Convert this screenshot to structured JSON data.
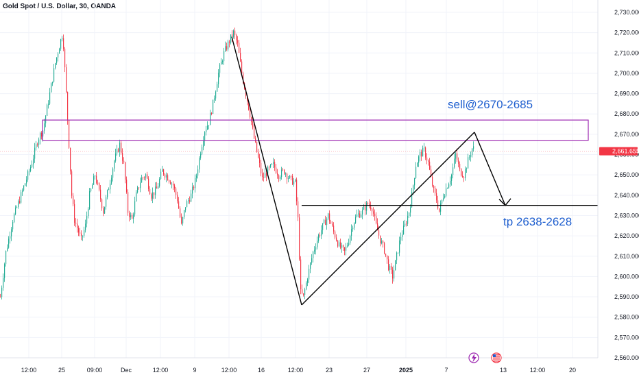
{
  "header": {
    "title": "Gold Spot / U.S. Dollar, 30, OANDA"
  },
  "colors": {
    "up": "#22ab94",
    "down": "#f23645",
    "zone": "#9c27b0",
    "annotation": "#1f5fcf",
    "price_tag": "#f23645",
    "drawing": "#000000"
  },
  "icons": [
    "lightning-icon",
    "us-flag-icon"
  ],
  "chart_data": {
    "type": "candlestick",
    "symbol": "Gold Spot / U.S. Dollar",
    "interval": "30",
    "source": "OANDA",
    "ylim": [
      2555,
      2735
    ],
    "y_ticks": [
      "2,730.000",
      "2,720.000",
      "2,710.000",
      "2,700.000",
      "2,690.000",
      "2,680.000",
      "2,670.000",
      "2,660.000",
      "2,650.000",
      "2,640.000",
      "2,630.000",
      "2,620.000",
      "2,610.000",
      "2,600.000",
      "2,590.000",
      "2,580.000",
      "2,570.000",
      "2,560.000"
    ],
    "y_tick_values": [
      2730,
      2720,
      2710,
      2700,
      2690,
      2680,
      2670,
      2660,
      2650,
      2640,
      2630,
      2620,
      2610,
      2600,
      2590,
      2580,
      2570,
      2560
    ],
    "x_ticks": [
      "12:00",
      "25",
      "09:00",
      "Dec",
      "12:00",
      "9",
      "12:00",
      "16",
      "12:00",
      "23",
      "27",
      "2025",
      "7",
      "13",
      "12:00",
      "20"
    ],
    "x_tick_index": [
      42,
      90,
      138,
      184,
      234,
      284,
      334,
      381,
      431,
      480,
      535,
      592,
      651,
      734,
      784,
      835
    ],
    "current_price": "2,661.655",
    "current_price_value": 2661.655,
    "price_path": [
      [
        0,
        2590
      ],
      [
        8,
        2612
      ],
      [
        18,
        2628
      ],
      [
        30,
        2640
      ],
      [
        45,
        2655
      ],
      [
        55,
        2668
      ],
      [
        62,
        2672
      ],
      [
        72,
        2690
      ],
      [
        80,
        2705
      ],
      [
        87,
        2715
      ],
      [
        91,
        2720
      ],
      [
        96,
        2690
      ],
      [
        100,
        2665
      ],
      [
        104,
        2640
      ],
      [
        108,
        2628
      ],
      [
        112,
        2624
      ],
      [
        118,
        2618
      ],
      [
        124,
        2625
      ],
      [
        130,
        2640
      ],
      [
        138,
        2650
      ],
      [
        145,
        2640
      ],
      [
        150,
        2632
      ],
      [
        158,
        2644
      ],
      [
        166,
        2657
      ],
      [
        174,
        2665
      ],
      [
        180,
        2655
      ],
      [
        186,
        2632
      ],
      [
        192,
        2628
      ],
      [
        198,
        2640
      ],
      [
        205,
        2648
      ],
      [
        212,
        2650
      ],
      [
        220,
        2640
      ],
      [
        228,
        2643
      ],
      [
        236,
        2652
      ],
      [
        244,
        2649
      ],
      [
        252,
        2645
      ],
      [
        258,
        2638
      ],
      [
        264,
        2625
      ],
      [
        270,
        2635
      ],
      [
        278,
        2640
      ],
      [
        285,
        2648
      ],
      [
        292,
        2662
      ],
      [
        298,
        2672
      ],
      [
        304,
        2676
      ],
      [
        310,
        2685
      ],
      [
        318,
        2700
      ],
      [
        326,
        2710
      ],
      [
        334,
        2716
      ],
      [
        340,
        2720
      ],
      [
        346,
        2714
      ],
      [
        352,
        2700
      ],
      [
        358,
        2690
      ],
      [
        364,
        2680
      ],
      [
        370,
        2668
      ],
      [
        376,
        2658
      ],
      [
        382,
        2648
      ],
      [
        390,
        2652
      ],
      [
        398,
        2655
      ],
      [
        406,
        2650
      ],
      [
        414,
        2652
      ],
      [
        422,
        2648
      ],
      [
        430,
        2646
      ],
      [
        434,
        2628
      ],
      [
        438,
        2592
      ],
      [
        442,
        2590
      ],
      [
        448,
        2600
      ],
      [
        456,
        2612
      ],
      [
        464,
        2620
      ],
      [
        472,
        2626
      ],
      [
        478,
        2630
      ],
      [
        486,
        2622
      ],
      [
        494,
        2615
      ],
      [
        502,
        2612
      ],
      [
        508,
        2618
      ],
      [
        514,
        2626
      ],
      [
        520,
        2630
      ],
      [
        528,
        2632
      ],
      [
        536,
        2636
      ],
      [
        542,
        2634
      ],
      [
        548,
        2625
      ],
      [
        554,
        2618
      ],
      [
        560,
        2613
      ],
      [
        566,
        2605
      ],
      [
        572,
        2600
      ],
      [
        578,
        2610
      ],
      [
        584,
        2620
      ],
      [
        590,
        2625
      ],
      [
        596,
        2632
      ],
      [
        600,
        2640
      ],
      [
        606,
        2655
      ],
      [
        612,
        2660
      ],
      [
        618,
        2662
      ],
      [
        624,
        2656
      ],
      [
        628,
        2648
      ],
      [
        632,
        2642
      ],
      [
        636,
        2638
      ],
      [
        640,
        2632
      ],
      [
        646,
        2640
      ],
      [
        652,
        2645
      ],
      [
        658,
        2650
      ],
      [
        664,
        2660
      ],
      [
        670,
        2652
      ],
      [
        676,
        2650
      ],
      [
        682,
        2657
      ],
      [
        688,
        2663
      ]
    ],
    "annotations": [
      {
        "text": "sell@2670-2685",
        "type": "label"
      },
      {
        "text": "tp 2638-2628",
        "type": "label"
      }
    ],
    "zone": {
      "price_low": 2667,
      "price_high": 2677
    },
    "tp_line_price": 2635,
    "trend_lines": [
      {
        "from": [
          338,
          2718
        ],
        "to": [
          440,
          2586
        ]
      },
      {
        "from": [
          440,
          2586
        ],
        "to": [
          692,
          2671
        ]
      },
      {
        "from": [
          692,
          2671
        ],
        "to": [
          737,
          2635
        ]
      }
    ]
  }
}
